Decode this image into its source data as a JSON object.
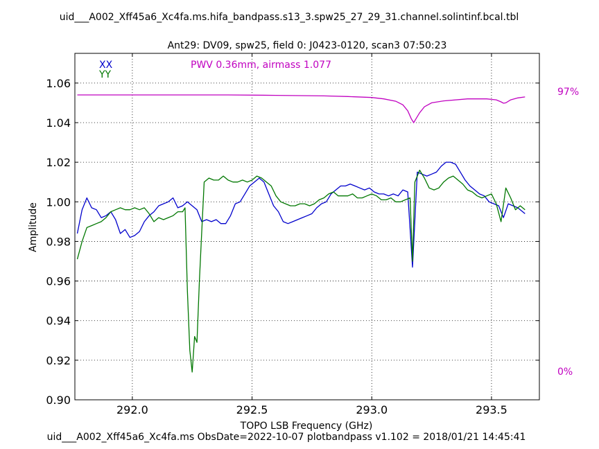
{
  "chart_data": {
    "type": "line",
    "title": "uid___A002_Xff45a6_Xc4fa.ms.hifa_bandpass.s13_3.spw25_27_29_31.channel.solintinf.bcal.tbl",
    "subtitle": "Ant29: DV09,  spw25,  field 0: J0423-0120,  scan3  07:50:23",
    "xlabel": "TOPO LSB Frequency (GHz)",
    "ylabel": "Amplitude",
    "footer": "uid___A002_Xff45a6_Xc4fa.ms  ObsDate=2022-10-07   plotbandpass v1.102 = 2018/01/21 14:45:41",
    "annotation": "PWV 0.36mm, airmass 1.077",
    "right_axis_labels": {
      "top": "97%",
      "bottom": "0%"
    },
    "xlim": [
      291.76,
      293.7
    ],
    "ylim": [
      0.9,
      1.075
    ],
    "x_ticks": [
      292.0,
      292.5,
      293.0,
      293.5
    ],
    "x_tick_labels": [
      "292.0",
      "292.5",
      "293.0",
      "293.5"
    ],
    "y_ticks": [
      0.9,
      0.92,
      0.94,
      0.96,
      0.98,
      1.0,
      1.02,
      1.04,
      1.06
    ],
    "y_tick_labels": [
      "0.90",
      "0.92",
      "0.94",
      "0.96",
      "0.98",
      "1.00",
      "1.02",
      "1.04",
      "1.06"
    ],
    "grid": true,
    "legend_position": "top-left",
    "series": [
      {
        "name": "XX",
        "color": "#0000cc",
        "points": [
          [
            291.77,
            0.984
          ],
          [
            291.79,
            0.996
          ],
          [
            291.81,
            1.002
          ],
          [
            291.83,
            0.997
          ],
          [
            291.85,
            0.996
          ],
          [
            291.87,
            0.992
          ],
          [
            291.89,
            0.993
          ],
          [
            291.91,
            0.995
          ],
          [
            291.93,
            0.991
          ],
          [
            291.95,
            0.984
          ],
          [
            291.97,
            0.986
          ],
          [
            291.99,
            0.982
          ],
          [
            292.01,
            0.983
          ],
          [
            292.03,
            0.985
          ],
          [
            292.05,
            0.99
          ],
          [
            292.07,
            0.993
          ],
          [
            292.09,
            0.995
          ],
          [
            292.11,
            0.998
          ],
          [
            292.13,
            0.999
          ],
          [
            292.15,
            1.0
          ],
          [
            292.17,
            1.002
          ],
          [
            292.19,
            0.997
          ],
          [
            292.21,
            0.998
          ],
          [
            292.23,
            1.0
          ],
          [
            292.25,
            0.998
          ],
          [
            292.27,
            0.996
          ],
          [
            292.29,
            0.99
          ],
          [
            292.31,
            0.991
          ],
          [
            292.33,
            0.99
          ],
          [
            292.35,
            0.991
          ],
          [
            292.37,
            0.989
          ],
          [
            292.39,
            0.989
          ],
          [
            292.41,
            0.993
          ],
          [
            292.43,
            0.999
          ],
          [
            292.45,
            1.0
          ],
          [
            292.47,
            1.004
          ],
          [
            292.49,
            1.008
          ],
          [
            292.51,
            1.01
          ],
          [
            292.53,
            1.012
          ],
          [
            292.55,
            1.01
          ],
          [
            292.57,
            1.004
          ],
          [
            292.59,
            0.998
          ],
          [
            292.61,
            0.995
          ],
          [
            292.63,
            0.99
          ],
          [
            292.65,
            0.989
          ],
          [
            292.67,
            0.99
          ],
          [
            292.69,
            0.991
          ],
          [
            292.71,
            0.992
          ],
          [
            292.73,
            0.993
          ],
          [
            292.75,
            0.994
          ],
          [
            292.77,
            0.997
          ],
          [
            292.79,
            0.999
          ],
          [
            292.81,
            1.0
          ],
          [
            292.83,
            1.004
          ],
          [
            292.85,
            1.006
          ],
          [
            292.87,
            1.008
          ],
          [
            292.89,
            1.008
          ],
          [
            292.91,
            1.009
          ],
          [
            292.93,
            1.008
          ],
          [
            292.95,
            1.007
          ],
          [
            292.97,
            1.006
          ],
          [
            292.99,
            1.007
          ],
          [
            293.01,
            1.005
          ],
          [
            293.03,
            1.004
          ],
          [
            293.05,
            1.004
          ],
          [
            293.07,
            1.003
          ],
          [
            293.09,
            1.004
          ],
          [
            293.11,
            1.003
          ],
          [
            293.13,
            1.006
          ],
          [
            293.15,
            1.005
          ],
          [
            293.17,
            0.967
          ],
          [
            293.19,
            1.015
          ],
          [
            293.21,
            1.014
          ],
          [
            293.23,
            1.013
          ],
          [
            293.25,
            1.014
          ],
          [
            293.27,
            1.015
          ],
          [
            293.29,
            1.018
          ],
          [
            293.31,
            1.02
          ],
          [
            293.33,
            1.02
          ],
          [
            293.35,
            1.019
          ],
          [
            293.37,
            1.015
          ],
          [
            293.39,
            1.011
          ],
          [
            293.41,
            1.008
          ],
          [
            293.43,
            1.006
          ],
          [
            293.45,
            1.004
          ],
          [
            293.47,
            1.003
          ],
          [
            293.49,
            1.0
          ],
          [
            293.51,
            0.999
          ],
          [
            293.53,
            0.998
          ],
          [
            293.55,
            0.992
          ],
          [
            293.57,
            0.999
          ],
          [
            293.59,
            0.998
          ],
          [
            293.61,
            0.997
          ],
          [
            293.64,
            0.994
          ]
        ]
      },
      {
        "name": "YY",
        "color": "#007700",
        "points": [
          [
            291.77,
            0.971
          ],
          [
            291.79,
            0.98
          ],
          [
            291.81,
            0.987
          ],
          [
            291.83,
            0.988
          ],
          [
            291.85,
            0.989
          ],
          [
            291.87,
            0.99
          ],
          [
            291.89,
            0.992
          ],
          [
            291.91,
            0.995
          ],
          [
            291.93,
            0.996
          ],
          [
            291.95,
            0.997
          ],
          [
            291.97,
            0.996
          ],
          [
            291.99,
            0.996
          ],
          [
            292.01,
            0.997
          ],
          [
            292.03,
            0.996
          ],
          [
            292.05,
            0.997
          ],
          [
            292.07,
            0.994
          ],
          [
            292.09,
            0.99
          ],
          [
            292.11,
            0.992
          ],
          [
            292.13,
            0.991
          ],
          [
            292.15,
            0.992
          ],
          [
            292.17,
            0.993
          ],
          [
            292.19,
            0.995
          ],
          [
            292.21,
            0.995
          ],
          [
            292.22,
            0.997
          ],
          [
            292.23,
            0.955
          ],
          [
            292.24,
            0.925
          ],
          [
            292.25,
            0.914
          ],
          [
            292.26,
            0.932
          ],
          [
            292.27,
            0.929
          ],
          [
            292.28,
            0.96
          ],
          [
            292.29,
            0.985
          ],
          [
            292.3,
            1.01
          ],
          [
            292.32,
            1.012
          ],
          [
            292.34,
            1.011
          ],
          [
            292.36,
            1.011
          ],
          [
            292.38,
            1.013
          ],
          [
            292.4,
            1.011
          ],
          [
            292.42,
            1.01
          ],
          [
            292.44,
            1.01
          ],
          [
            292.46,
            1.011
          ],
          [
            292.48,
            1.01
          ],
          [
            292.5,
            1.011
          ],
          [
            292.52,
            1.013
          ],
          [
            292.54,
            1.012
          ],
          [
            292.56,
            1.01
          ],
          [
            292.58,
            1.008
          ],
          [
            292.6,
            1.003
          ],
          [
            292.62,
            1.0
          ],
          [
            292.64,
            0.999
          ],
          [
            292.66,
            0.998
          ],
          [
            292.68,
            0.998
          ],
          [
            292.7,
            0.999
          ],
          [
            292.72,
            0.999
          ],
          [
            292.74,
            0.998
          ],
          [
            292.76,
            0.999
          ],
          [
            292.78,
            1.001
          ],
          [
            292.8,
            1.002
          ],
          [
            292.82,
            1.004
          ],
          [
            292.84,
            1.005
          ],
          [
            292.86,
            1.003
          ],
          [
            292.88,
            1.003
          ],
          [
            292.9,
            1.003
          ],
          [
            292.92,
            1.004
          ],
          [
            292.94,
            1.002
          ],
          [
            292.96,
            1.002
          ],
          [
            292.98,
            1.003
          ],
          [
            293.0,
            1.004
          ],
          [
            293.02,
            1.003
          ],
          [
            293.04,
            1.001
          ],
          [
            293.06,
            1.001
          ],
          [
            293.08,
            1.002
          ],
          [
            293.1,
            1.0
          ],
          [
            293.12,
            1.0
          ],
          [
            293.14,
            1.001
          ],
          [
            293.16,
            1.002
          ],
          [
            293.17,
            0.97
          ],
          [
            293.18,
            1.01
          ],
          [
            293.2,
            1.016
          ],
          [
            293.22,
            1.012
          ],
          [
            293.24,
            1.007
          ],
          [
            293.26,
            1.006
          ],
          [
            293.28,
            1.007
          ],
          [
            293.3,
            1.01
          ],
          [
            293.32,
            1.012
          ],
          [
            293.34,
            1.013
          ],
          [
            293.36,
            1.011
          ],
          [
            293.38,
            1.009
          ],
          [
            293.4,
            1.006
          ],
          [
            293.42,
            1.005
          ],
          [
            293.44,
            1.003
          ],
          [
            293.46,
            1.002
          ],
          [
            293.48,
            1.003
          ],
          [
            293.5,
            1.004
          ],
          [
            293.52,
            0.999
          ],
          [
            293.54,
            0.99
          ],
          [
            293.56,
            1.007
          ],
          [
            293.58,
            1.002
          ],
          [
            293.6,
            0.996
          ],
          [
            293.62,
            0.998
          ],
          [
            293.64,
            0.996
          ]
        ]
      }
    ],
    "atmosphere_curve": {
      "color": "#c000c0",
      "points": [
        [
          291.77,
          1.054
        ],
        [
          292.0,
          1.054
        ],
        [
          292.2,
          1.054
        ],
        [
          292.4,
          1.054
        ],
        [
          292.6,
          1.0538
        ],
        [
          292.8,
          1.0535
        ],
        [
          292.9,
          1.0532
        ],
        [
          293.0,
          1.0527
        ],
        [
          293.05,
          1.052
        ],
        [
          293.1,
          1.0508
        ],
        [
          293.13,
          1.049
        ],
        [
          293.15,
          1.046
        ],
        [
          293.165,
          1.042
        ],
        [
          293.175,
          1.04
        ],
        [
          293.185,
          1.042
        ],
        [
          293.2,
          1.045
        ],
        [
          293.22,
          1.048
        ],
        [
          293.25,
          1.05
        ],
        [
          293.3,
          1.051
        ],
        [
          293.4,
          1.052
        ],
        [
          293.48,
          1.052
        ],
        [
          293.52,
          1.0515
        ],
        [
          293.54,
          1.0505
        ],
        [
          293.55,
          1.0498
        ],
        [
          293.56,
          1.05
        ],
        [
          293.58,
          1.0515
        ],
        [
          293.61,
          1.0525
        ],
        [
          293.64,
          1.053
        ]
      ]
    }
  }
}
